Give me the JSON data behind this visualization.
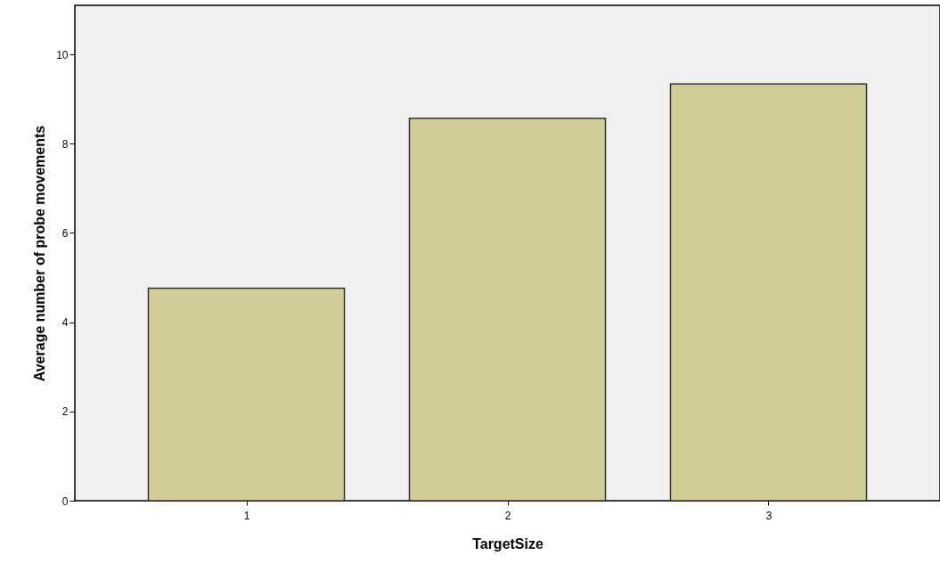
{
  "chart_data": {
    "type": "bar",
    "xlabel": "TargetSize",
    "ylabel": "Average number of probe movements",
    "categories": [
      "1",
      "2",
      "3"
    ],
    "values": [
      4.76,
      8.57,
      9.34
    ],
    "color": "#d3ce97",
    "ylim": [
      0,
      11.1
    ],
    "yticks": [
      0,
      2,
      4,
      6,
      8,
      10
    ],
    "grid": false
  }
}
